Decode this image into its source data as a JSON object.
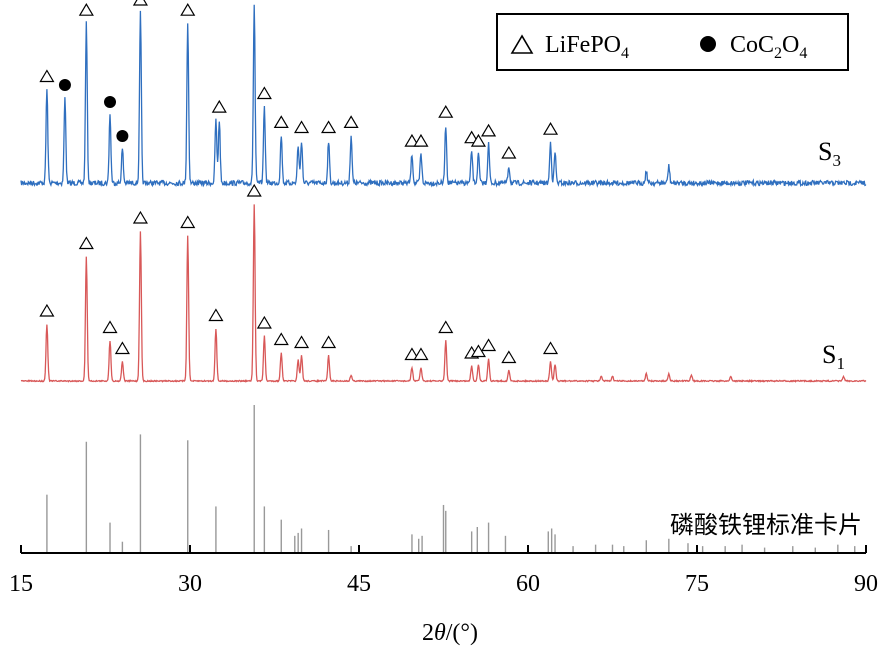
{
  "chart_data": {
    "type": "line",
    "xlabel_prefix": "2",
    "xlabel_var": "θ",
    "xlabel_suffix": "/(°)",
    "xlim": [
      15,
      90
    ],
    "xticks": [
      15,
      30,
      45,
      60,
      75,
      90
    ],
    "legend": {
      "position": "top-right",
      "items": [
        {
          "marker": "triangle",
          "base": "LiFePO",
          "sub": "4",
          "tail": ""
        },
        {
          "marker": "dot",
          "base": "CoC",
          "sub": "2",
          "tail": "O",
          "sub2": "4"
        }
      ]
    },
    "series": [
      {
        "name_base": "S",
        "name_sub": "3",
        "color": "#2f6fbf",
        "peaks": [
          {
            "x": 17.3,
            "h": 0.55
          },
          {
            "x": 18.9,
            "h": 0.5
          },
          {
            "x": 20.8,
            "h": 0.94
          },
          {
            "x": 22.9,
            "h": 0.4
          },
          {
            "x": 24.0,
            "h": 0.2
          },
          {
            "x": 25.6,
            "h": 1.0
          },
          {
            "x": 29.8,
            "h": 0.94
          },
          {
            "x": 32.3,
            "h": 0.37
          },
          {
            "x": 32.6,
            "h": 0.37
          },
          {
            "x": 35.7,
            "h": 1.05
          },
          {
            "x": 36.6,
            "h": 0.45
          },
          {
            "x": 38.1,
            "h": 0.28
          },
          {
            "x": 39.6,
            "h": 0.22
          },
          {
            "x": 39.9,
            "h": 0.25
          },
          {
            "x": 42.3,
            "h": 0.25
          },
          {
            "x": 44.3,
            "h": 0.28
          },
          {
            "x": 49.7,
            "h": 0.17
          },
          {
            "x": 50.5,
            "h": 0.17
          },
          {
            "x": 52.7,
            "h": 0.34
          },
          {
            "x": 55.0,
            "h": 0.19
          },
          {
            "x": 55.6,
            "h": 0.17
          },
          {
            "x": 56.5,
            "h": 0.23
          },
          {
            "x": 58.3,
            "h": 0.1
          },
          {
            "x": 62.0,
            "h": 0.24
          },
          {
            "x": 62.4,
            "h": 0.18
          },
          {
            "x": 70.5,
            "h": 0.07
          },
          {
            "x": 72.5,
            "h": 0.1
          }
        ],
        "triangles": [
          17.3,
          20.8,
          25.6,
          29.8,
          32.6,
          35.7,
          36.6,
          38.1,
          39.9,
          42.3,
          44.3,
          49.7,
          50.5,
          52.7,
          55.0,
          55.6,
          56.5,
          58.3,
          62.0
        ],
        "dots": [
          18.9,
          22.9,
          24.0
        ]
      },
      {
        "name_base": "S",
        "name_sub": "1",
        "color": "#d85858",
        "peaks": [
          {
            "x": 17.3,
            "h": 0.38
          },
          {
            "x": 20.8,
            "h": 0.83
          },
          {
            "x": 22.9,
            "h": 0.27
          },
          {
            "x": 24.0,
            "h": 0.13
          },
          {
            "x": 25.6,
            "h": 1.0
          },
          {
            "x": 29.8,
            "h": 0.97
          },
          {
            "x": 32.3,
            "h": 0.35
          },
          {
            "x": 35.7,
            "h": 1.18
          },
          {
            "x": 36.6,
            "h": 0.3
          },
          {
            "x": 38.1,
            "h": 0.19
          },
          {
            "x": 39.6,
            "h": 0.14
          },
          {
            "x": 39.9,
            "h": 0.17
          },
          {
            "x": 42.3,
            "h": 0.17
          },
          {
            "x": 44.3,
            "h": 0.04
          },
          {
            "x": 49.7,
            "h": 0.09
          },
          {
            "x": 50.5,
            "h": 0.09
          },
          {
            "x": 52.7,
            "h": 0.27
          },
          {
            "x": 55.0,
            "h": 0.1
          },
          {
            "x": 55.6,
            "h": 0.11
          },
          {
            "x": 56.5,
            "h": 0.15
          },
          {
            "x": 58.3,
            "h": 0.07
          },
          {
            "x": 62.0,
            "h": 0.13
          },
          {
            "x": 62.4,
            "h": 0.11
          },
          {
            "x": 66.5,
            "h": 0.03
          },
          {
            "x": 67.5,
            "h": 0.03
          },
          {
            "x": 70.5,
            "h": 0.05
          },
          {
            "x": 72.5,
            "h": 0.05
          },
          {
            "x": 74.5,
            "h": 0.04
          },
          {
            "x": 78.0,
            "h": 0.03
          },
          {
            "x": 88.0,
            "h": 0.03
          }
        ],
        "triangles": [
          17.3,
          20.8,
          22.9,
          24.0,
          25.6,
          29.8,
          32.3,
          35.7,
          36.6,
          38.1,
          39.9,
          42.3,
          49.7,
          50.5,
          52.7,
          55.0,
          55.6,
          56.5,
          58.3,
          62.0
        ],
        "dots": []
      }
    ],
    "reference_card": {
      "label": "磷酸铁锂标准卡片",
      "color": "#999999",
      "lines": [
        {
          "x": 17.3,
          "h": 0.39
        },
        {
          "x": 20.8,
          "h": 0.75
        },
        {
          "x": 22.9,
          "h": 0.2
        },
        {
          "x": 24.0,
          "h": 0.07
        },
        {
          "x": 25.6,
          "h": 0.8
        },
        {
          "x": 29.8,
          "h": 0.76
        },
        {
          "x": 32.3,
          "h": 0.31
        },
        {
          "x": 35.7,
          "h": 1.0
        },
        {
          "x": 36.6,
          "h": 0.31
        },
        {
          "x": 38.1,
          "h": 0.22
        },
        {
          "x": 39.3,
          "h": 0.11
        },
        {
          "x": 39.6,
          "h": 0.13
        },
        {
          "x": 39.9,
          "h": 0.16
        },
        {
          "x": 42.3,
          "h": 0.15
        },
        {
          "x": 44.3,
          "h": 0.04
        },
        {
          "x": 49.7,
          "h": 0.12
        },
        {
          "x": 50.3,
          "h": 0.09
        },
        {
          "x": 50.6,
          "h": 0.11
        },
        {
          "x": 52.5,
          "h": 0.32
        },
        {
          "x": 52.7,
          "h": 0.28
        },
        {
          "x": 55.0,
          "h": 0.14
        },
        {
          "x": 55.5,
          "h": 0.17
        },
        {
          "x": 56.5,
          "h": 0.2
        },
        {
          "x": 58.0,
          "h": 0.11
        },
        {
          "x": 61.8,
          "h": 0.14
        },
        {
          "x": 62.1,
          "h": 0.16
        },
        {
          "x": 62.4,
          "h": 0.12
        },
        {
          "x": 64.0,
          "h": 0.04
        },
        {
          "x": 66.0,
          "h": 0.05
        },
        {
          "x": 67.5,
          "h": 0.05
        },
        {
          "x": 68.5,
          "h": 0.04
        },
        {
          "x": 70.5,
          "h": 0.08
        },
        {
          "x": 72.5,
          "h": 0.09
        },
        {
          "x": 74.2,
          "h": 0.06
        },
        {
          "x": 75.5,
          "h": 0.04
        },
        {
          "x": 77.5,
          "h": 0.04
        },
        {
          "x": 79.0,
          "h": 0.05
        },
        {
          "x": 81.0,
          "h": 0.03
        },
        {
          "x": 83.5,
          "h": 0.04
        },
        {
          "x": 85.5,
          "h": 0.03
        },
        {
          "x": 87.5,
          "h": 0.05
        },
        {
          "x": 89.0,
          "h": 0.04
        }
      ]
    }
  }
}
